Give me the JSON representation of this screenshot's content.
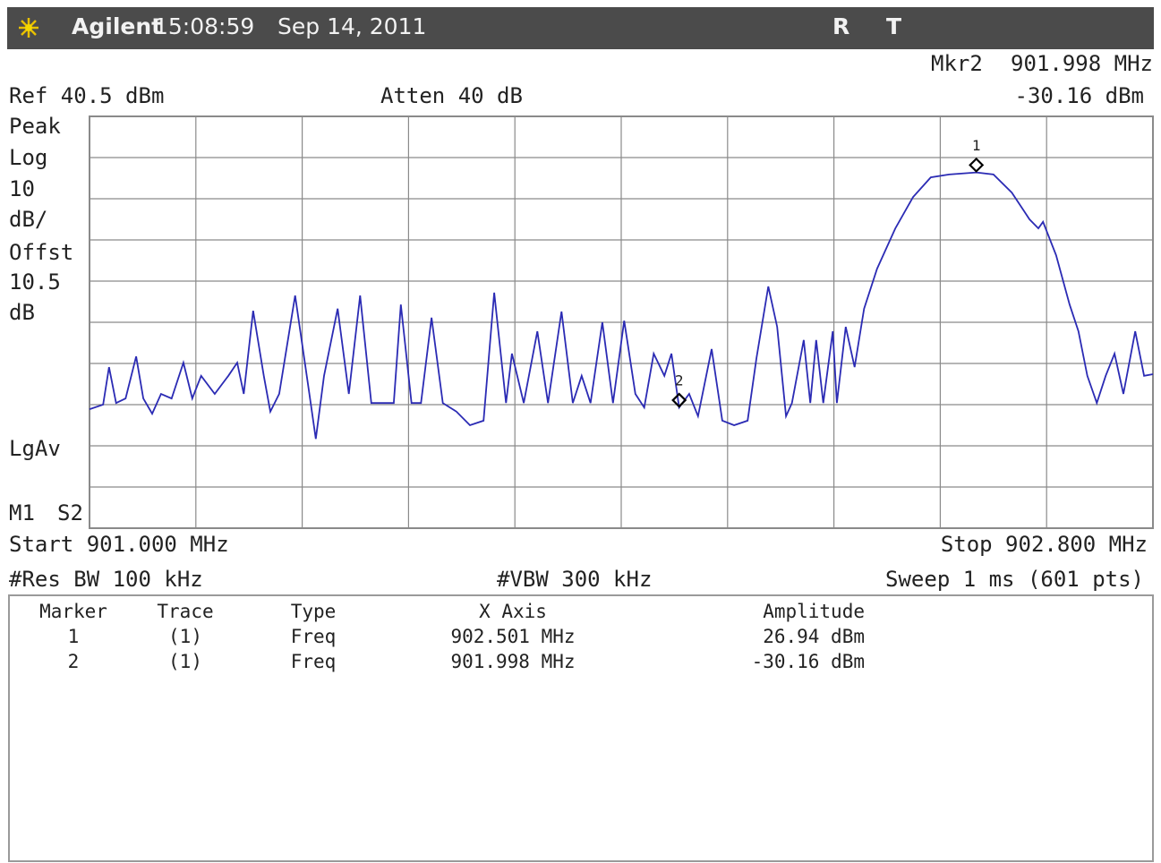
{
  "header": {
    "brand": "Agilent",
    "time": "15:08:59",
    "date": "Sep 14, 2011",
    "status": [
      "R",
      "T"
    ]
  },
  "readout": {
    "marker_name": "Mkr2",
    "marker_freq": "901.998 MHz",
    "marker_amp": "-30.16 dBm",
    "ref": "Ref 40.5 dBm",
    "atten": "Atten 40 dB",
    "left_labels": [
      "Peak",
      "Log",
      "10",
      "dB/",
      "Offst",
      "10.5",
      "dB",
      "LgAv"
    ],
    "mode": [
      "M1",
      "S2"
    ],
    "start": "Start 901.000 MHz",
    "stop": "Stop 902.800 MHz",
    "res_bw": "#Res BW 100 kHz",
    "vbw": "#VBW 300 kHz",
    "sweep": "Sweep 1 ms (601 pts)"
  },
  "trace": {
    "color": "#2b2bb4",
    "xlim": [
      901.0,
      902.8
    ],
    "ylim": [
      -59.5,
      40.5
    ],
    "x": [
      901.0,
      901.023,
      901.033,
      901.045,
      901.061,
      901.079,
      901.091,
      901.106,
      901.121,
      901.139,
      901.159,
      901.174,
      901.189,
      901.212,
      901.235,
      901.25,
      901.261,
      901.277,
      901.295,
      901.306,
      901.321,
      901.348,
      901.371,
      901.383,
      901.397,
      901.42,
      901.439,
      901.458,
      901.477,
      901.492,
      901.515,
      901.527,
      901.545,
      901.561,
      901.579,
      901.598,
      901.621,
      901.644,
      901.667,
      901.685,
      901.705,
      901.715,
      901.735,
      901.758,
      901.776,
      901.799,
      901.818,
      901.833,
      901.848,
      901.868,
      901.886,
      901.905,
      901.924,
      901.939,
      901.955,
      901.973,
      901.985,
      901.998,
      902.015,
      902.03,
      902.053,
      902.071,
      902.091,
      902.114,
      902.129,
      902.149,
      902.164,
      902.179,
      902.189,
      902.209,
      902.22,
      902.23,
      902.242,
      902.258,
      902.265,
      902.28,
      902.295,
      902.311,
      902.333,
      902.364,
      902.394,
      902.424,
      902.455,
      902.501,
      902.53,
      902.561,
      902.591,
      902.606,
      902.614,
      902.636,
      902.659,
      902.674,
      902.689,
      902.705,
      902.72,
      902.735,
      902.75,
      902.77,
      902.785,
      902.8
    ],
    "values": [
      -30.6,
      -29.5,
      -20.4,
      -29.1,
      -28.0,
      -17.8,
      -28.0,
      -31.7,
      -26.9,
      -28.0,
      -19.3,
      -28.0,
      -22.5,
      -26.9,
      -22.5,
      -19.3,
      -26.9,
      -6.7,
      -22.5,
      -31.2,
      -26.9,
      -3.0,
      -25.8,
      -37.8,
      -22.5,
      -6.2,
      -26.9,
      -3.0,
      -29.1,
      -29.1,
      -29.1,
      -5.2,
      -29.1,
      -29.1,
      -8.4,
      -29.1,
      -31.2,
      -34.5,
      -33.4,
      -2.3,
      -29.1,
      -17.1,
      -29.1,
      -11.7,
      -29.1,
      -6.9,
      -29.1,
      -22.5,
      -29.1,
      -9.5,
      -29.1,
      -9.1,
      -26.9,
      -30.2,
      -17.1,
      -22.5,
      -17.1,
      -30.2,
      -26.9,
      -32.3,
      -16.0,
      -33.4,
      -34.5,
      -33.4,
      -18.2,
      -0.8,
      -10.6,
      -32.3,
      -29.1,
      -13.8,
      -29.1,
      -13.8,
      -29.1,
      -11.7,
      -29.1,
      -10.6,
      -20.4,
      -6.2,
      3.5,
      13.3,
      20.9,
      25.7,
      26.4,
      26.9,
      26.4,
      22.0,
      15.5,
      13.3,
      14.9,
      6.8,
      -5.2,
      -11.7,
      -22.5,
      -29.1,
      -22.5,
      -17.1,
      -26.9,
      -11.7,
      -22.5,
      -22.1
    ]
  },
  "markers": [
    {
      "label": "1",
      "x": 902.501,
      "value": 26.94
    },
    {
      "label": "2",
      "x": 901.998,
      "value": -30.16
    }
  ],
  "table": {
    "columns": [
      "Marker",
      "Trace",
      "Type",
      "X Axis",
      "Amplitude"
    ],
    "rows": [
      [
        "1",
        "(1)",
        "Freq",
        "902.501 MHz",
        "26.94 dBm"
      ],
      [
        "2",
        "(1)",
        "Freq",
        "901.998 MHz",
        "-30.16 dBm"
      ]
    ]
  }
}
